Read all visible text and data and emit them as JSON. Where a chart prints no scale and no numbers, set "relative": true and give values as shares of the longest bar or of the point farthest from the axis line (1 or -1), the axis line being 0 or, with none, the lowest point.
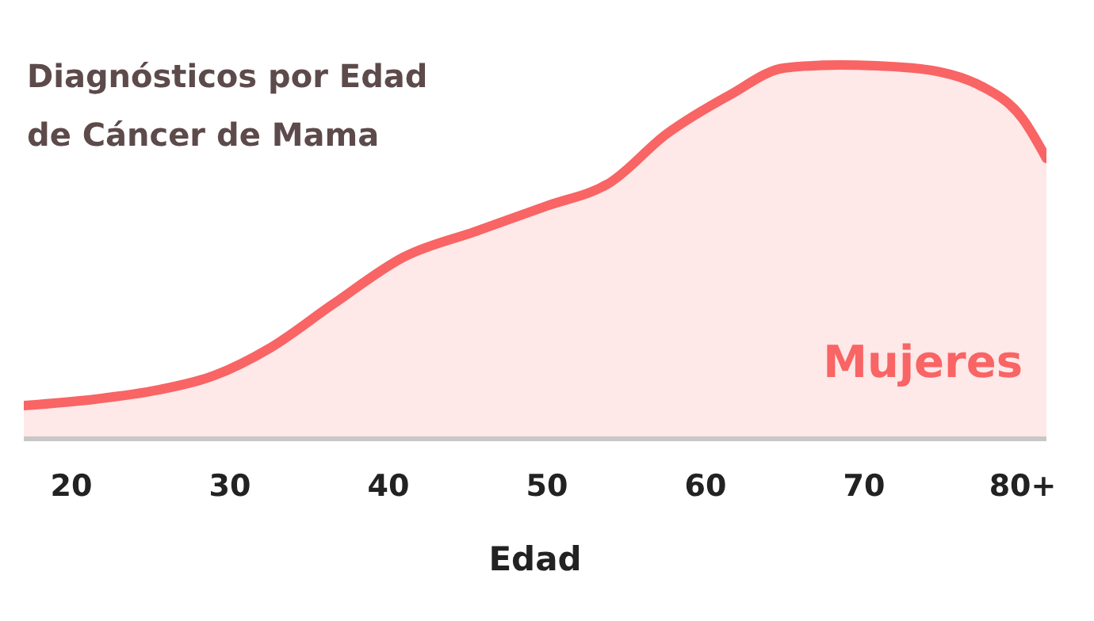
{
  "chart_data": {
    "type": "area",
    "title": "Diagnósticos por Edad\nde Cáncer de Mama",
    "xlabel": "Edad",
    "relative": true,
    "xlim": [
      17,
      81.5
    ],
    "xticks": [
      20,
      30,
      40,
      50,
      60,
      70,
      {
        "value": 80,
        "label": "80+"
      }
    ],
    "x": [
      17,
      21.5,
      25.5,
      29,
      32.5,
      36.5,
      41,
      45.5,
      50,
      54,
      57.5,
      61.5,
      65,
      68.5,
      73,
      77.5,
      80,
      81.5
    ],
    "series": [
      {
        "name": "Mujeres",
        "color": "#f96464",
        "values": [
          0.089,
          0.106,
          0.131,
          0.169,
          0.242,
          0.36,
          0.487,
          0.555,
          0.623,
          0.686,
          0.814,
          0.919,
          0.992,
          1,
          0.992,
          0.941,
          0.856,
          0.75
        ]
      }
    ]
  }
}
